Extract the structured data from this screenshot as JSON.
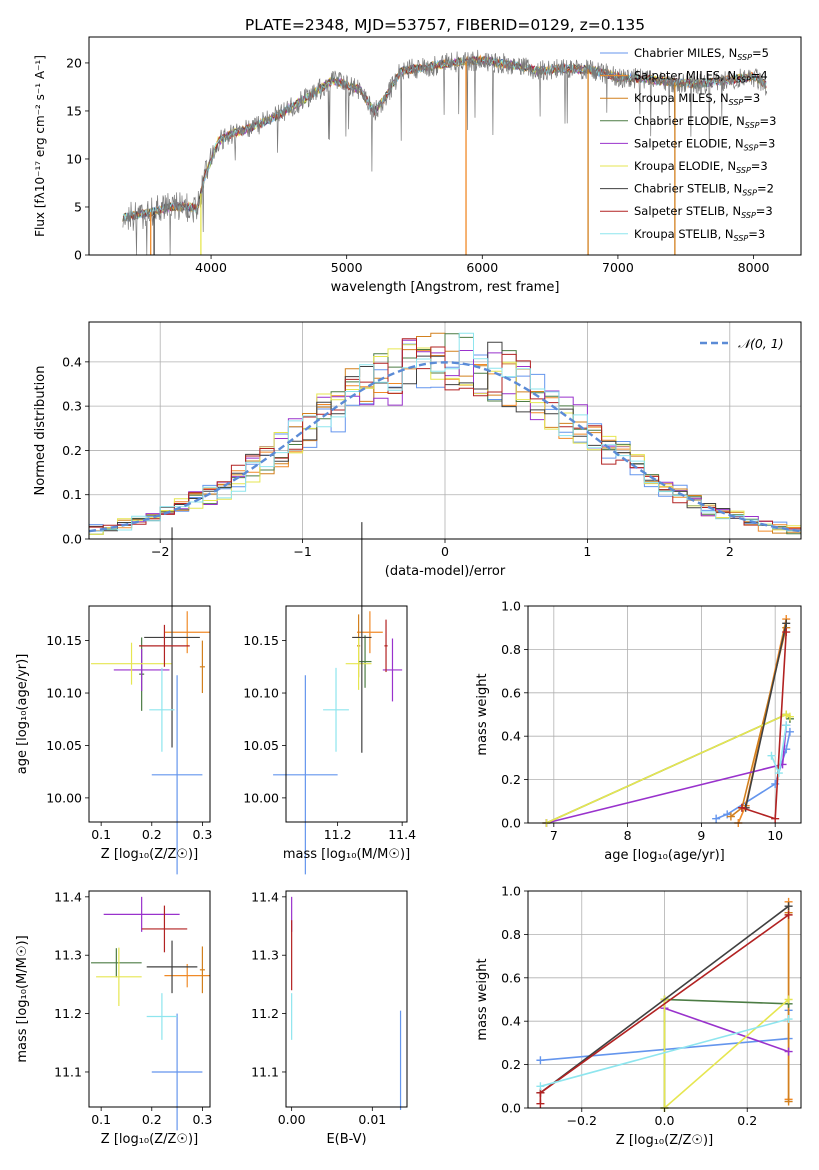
{
  "figure_title": "PLATE=2348, MJD=53757, FIBERID=0129, z=0.135",
  "chart_data": [
    {
      "type": "line",
      "id": "spectrum",
      "xlabel": "wavelength [Angstrom, rest frame]",
      "ylabel": "Flux [fλ10⁻¹⁷ erg cm⁻² s⁻¹ A⁻¹]",
      "xlim": [
        3100,
        8350
      ],
      "ylim": [
        0,
        22.7
      ],
      "xticks": [
        4000,
        5000,
        6000,
        7000,
        8000
      ],
      "yticks": [
        0,
        5,
        10,
        15,
        20
      ],
      "legend_position": "top-right",
      "series": [
        {
          "name": "Chabrier MILES, N_SSP=5",
          "color": "#6495ed"
        },
        {
          "name": "Salpeter MILES, N_SSP=4",
          "color": "#f08a28"
        },
        {
          "name": "Kroupa MILES, N_SSP=3",
          "color": "#d2801e"
        },
        {
          "name": "Chabrier ELODIE, N_SSP=3",
          "color": "#4c7c44"
        },
        {
          "name": "Salpeter ELODIE, N_SSP=3",
          "color": "#9932cc"
        },
        {
          "name": "Kroupa ELODIE, N_SSP=3",
          "color": "#e6e650"
        },
        {
          "name": "Chabrier STELIB, N_SSP=2",
          "color": "#404040"
        },
        {
          "name": "Salpeter STELIB, N_SSP=3",
          "color": "#b22222"
        },
        {
          "name": "Kroupa STELIB, N_SSP=3",
          "color": "#8ee5ee"
        }
      ],
      "approx_continuum": {
        "x": [
          3350,
          3500,
          3600,
          3700,
          3800,
          3900,
          3950,
          4050,
          4150,
          4300,
          4500,
          4700,
          4900,
          5100,
          5200,
          5300,
          5400,
          5600,
          5800,
          6000,
          6200,
          6400,
          6600,
          6800,
          7000,
          7200,
          7400,
          7600,
          7800,
          8000,
          8100
        ],
        "y": [
          3.9,
          4.3,
          4.6,
          5.0,
          5.1,
          4.8,
          8.0,
          11.8,
          12.6,
          13.3,
          14.6,
          16.3,
          18.2,
          17.2,
          14.9,
          16.7,
          19.2,
          19.6,
          20.1,
          20.3,
          19.8,
          19.2,
          19.4,
          19.3,
          18.5,
          18.3,
          18.0,
          17.8,
          18.2,
          18.6,
          17.6
        ]
      }
    },
    {
      "type": "histogram",
      "id": "residuals",
      "xlabel": "(data-model)/error",
      "ylabel": "Normed distribution",
      "xlim": [
        -2.5,
        2.5
      ],
      "ylim": [
        0,
        0.49
      ],
      "xticks": [
        -2,
        -1,
        0,
        1,
        2
      ],
      "yticks": [
        0.0,
        0.1,
        0.2,
        0.3,
        0.4
      ],
      "grid": true,
      "reference_curve": {
        "name": "𝒩(0, 1)",
        "color": "#5b8bd6"
      },
      "bin_width": 0.1,
      "approx_bin_centers_range": [
        -2.45,
        2.45
      ]
    },
    {
      "type": "scatter",
      "id": "age-vs-Z",
      "xlabel": "Z [log₁₀(Z/Z☉)]",
      "ylabel": "age  [log₁₀(age/yr)]",
      "xlim": [
        0.076,
        0.315
      ],
      "ylim": [
        9.977,
        10.183
      ],
      "xticks": [
        0.1,
        0.2,
        0.3
      ],
      "yticks": [
        10.0,
        10.05,
        10.1,
        10.15
      ],
      "points": [
        {
          "series": "Chabrier MILES",
          "x": 0.25,
          "y": 10.022,
          "xerr": 0.05,
          "yerr": 0.095
        },
        {
          "series": "Salpeter MILES",
          "x": 0.27,
          "y": 10.158,
          "xerr": 0.045,
          "yerr": 0.02
        },
        {
          "series": "Kroupa MILES",
          "x": 0.3,
          "y": 10.125,
          "xerr": 0.005,
          "yerr": 0.025
        },
        {
          "series": "Chabrier ELODIE",
          "x": 0.18,
          "y": 10.118,
          "xerr": 0.005,
          "yerr": 0.035
        },
        {
          "series": "Salpeter ELODIE",
          "x": 0.18,
          "y": 10.122,
          "xerr": 0.055,
          "yerr": 0.02
        },
        {
          "series": "Kroupa ELODIE",
          "x": 0.16,
          "y": 10.128,
          "xerr": 0.08,
          "yerr": 0.02
        },
        {
          "series": "Chabrier STELIB",
          "x": 0.24,
          "y": 10.153,
          "xerr": 0.055,
          "yerr": 0.105
        },
        {
          "series": "Salpeter STELIB",
          "x": 0.225,
          "y": 10.145,
          "xerr": 0.05,
          "yerr": 0.02
        },
        {
          "series": "Kroupa STELIB",
          "x": 0.22,
          "y": 10.084,
          "xerr": 0.025,
          "yerr": 0.04
        }
      ]
    },
    {
      "type": "scatter",
      "id": "age-vs-mass",
      "xlabel": "mass [log₁₀(M/M☉)]",
      "ylabel": "",
      "xlim": [
        11.04,
        11.415
      ],
      "ylim": [
        9.977,
        10.183
      ],
      "xticks": [
        11.2,
        11.4
      ],
      "yticks": [
        10.0,
        10.05,
        10.1,
        10.15
      ],
      "points": [
        {
          "series": "Chabrier MILES",
          "x": 11.1,
          "y": 10.022,
          "xerr": 0.1,
          "yerr": 0.095
        },
        {
          "series": "Salpeter MILES",
          "x": 11.3,
          "y": 10.158,
          "xerr": 0.04,
          "yerr": 0.02
        },
        {
          "series": "Kroupa MILES",
          "x": 11.265,
          "y": 10.145,
          "xerr": 0.005,
          "yerr": 0.03
        },
        {
          "series": "Chabrier ELODIE",
          "x": 11.285,
          "y": 10.13,
          "xerr": 0.02,
          "yerr": 0.025
        },
        {
          "series": "Salpeter ELODIE",
          "x": 11.37,
          "y": 10.122,
          "xerr": 0.03,
          "yerr": 0.03
        },
        {
          "series": "Kroupa ELODIE",
          "x": 11.265,
          "y": 10.128,
          "xerr": 0.04,
          "yerr": 0.025
        },
        {
          "series": "Chabrier STELIB",
          "x": 11.275,
          "y": 10.153,
          "xerr": 0.03,
          "yerr": 0.11
        },
        {
          "series": "Salpeter STELIB",
          "x": 11.35,
          "y": 10.145,
          "xerr": 0.005,
          "yerr": 0.025
        },
        {
          "series": "Kroupa STELIB",
          "x": 11.195,
          "y": 10.084,
          "xerr": 0.04,
          "yerr": 0.04
        }
      ]
    },
    {
      "type": "line",
      "id": "mass-weight-vs-age",
      "xlabel": "age  [log₁₀(age/yr)]",
      "ylabel": "mass weight",
      "xlim": [
        6.65,
        10.35
      ],
      "ylim": [
        0,
        1.0
      ],
      "xticks": [
        7,
        8,
        9,
        10
      ],
      "yticks": [
        0.0,
        0.2,
        0.4,
        0.6,
        0.8,
        1.0
      ],
      "grid": true,
      "series": [
        {
          "name": "Chabrier MILES",
          "x": [
            9.2,
            9.35,
            10.0,
            10.15,
            10.2
          ],
          "y": [
            0.02,
            0.04,
            0.18,
            0.34,
            0.42
          ]
        },
        {
          "name": "Salpeter MILES",
          "x": [
            9.5,
            9.6,
            10.15
          ],
          "y": [
            0.0,
            0.08,
            0.94
          ]
        },
        {
          "name": "Kroupa MILES",
          "x": [
            9.4,
            9.55,
            10.15
          ],
          "y": [
            0.03,
            0.07,
            0.9
          ]
        },
        {
          "name": "Chabrier ELODIE",
          "x": [
            6.9,
            10.15,
            10.2
          ],
          "y": [
            0.0,
            0.5,
            0.48
          ]
        },
        {
          "name": "Salpeter ELODIE",
          "x": [
            6.9,
            10.1,
            10.15
          ],
          "y": [
            0.0,
            0.27,
            0.45
          ]
        },
        {
          "name": "Kroupa ELODIE",
          "x": [
            6.9,
            10.15,
            10.2
          ],
          "y": [
            0.0,
            0.5,
            0.49
          ]
        },
        {
          "name": "Chabrier STELIB",
          "x": [
            9.6,
            10.15
          ],
          "y": [
            0.07,
            0.92
          ]
        },
        {
          "name": "Salpeter STELIB",
          "x": [
            9.55,
            10.0,
            10.15
          ],
          "y": [
            0.07,
            0.02,
            0.88
          ]
        },
        {
          "name": "Kroupa STELIB",
          "x": [
            9.95,
            10.05,
            10.15
          ],
          "y": [
            0.31,
            0.23,
            0.45
          ]
        }
      ]
    },
    {
      "type": "scatter",
      "id": "mass-vs-Z",
      "xlabel": "Z [log₁₀(Z/Z☉)]",
      "ylabel": "mass [log₁₀(M/M☉)]",
      "xlim": [
        0.076,
        0.315
      ],
      "ylim": [
        11.04,
        11.41
      ],
      "xticks": [
        0.1,
        0.2,
        0.3
      ],
      "yticks": [
        11.1,
        11.2,
        11.3,
        11.4
      ],
      "points": [
        {
          "series": "Chabrier MILES",
          "x": 0.25,
          "y": 11.1,
          "xerr": 0.05,
          "yerr": 0.1
        },
        {
          "series": "Salpeter MILES",
          "x": 0.27,
          "y": 11.265,
          "xerr": 0.045,
          "yerr": 0.02
        },
        {
          "series": "Kroupa MILES",
          "x": 0.3,
          "y": 11.275,
          "xerr": 0.005,
          "yerr": 0.04
        },
        {
          "series": "Chabrier ELODIE",
          "x": 0.13,
          "y": 11.287,
          "xerr": 0.05,
          "yerr": 0.025
        },
        {
          "series": "Salpeter ELODIE",
          "x": 0.18,
          "y": 11.37,
          "xerr": 0.075,
          "yerr": 0.03
        },
        {
          "series": "Kroupa ELODIE",
          "x": 0.135,
          "y": 11.263,
          "xerr": 0.045,
          "yerr": 0.05
        },
        {
          "series": "Chabrier STELIB",
          "x": 0.24,
          "y": 11.28,
          "xerr": 0.05,
          "yerr": 0.045
        },
        {
          "series": "Salpeter STELIB",
          "x": 0.225,
          "y": 11.345,
          "xerr": 0.045,
          "yerr": 0.04
        },
        {
          "series": "Kroupa STELIB",
          "x": 0.22,
          "y": 11.195,
          "xerr": 0.03,
          "yerr": 0.04
        }
      ]
    },
    {
      "type": "scatter",
      "id": "mass-vs-EBV",
      "xlabel": "E(B-V)",
      "ylabel": "",
      "xlim": [
        -0.0007,
        0.0143
      ],
      "ylim": [
        11.04,
        11.41
      ],
      "xticks": [
        0.0,
        0.01
      ],
      "yticks": [
        11.1,
        11.2,
        11.3,
        11.4
      ],
      "points": [
        {
          "series": "Chabrier MILES",
          "x": 0.0135,
          "y": 11.12,
          "xerr": 0,
          "yerr": 0.085
        },
        {
          "series": "Salpeter ELODIE",
          "x": 0.0,
          "y": 11.37,
          "xerr": 0,
          "yerr": 0.03
        },
        {
          "series": "Salpeter STELIB",
          "x": 0.0,
          "y": 11.3,
          "xerr": 0,
          "yerr": 0.06
        },
        {
          "series": "Kroupa STELIB",
          "x": 0.0,
          "y": 11.195,
          "xerr": 0,
          "yerr": 0.04
        }
      ]
    },
    {
      "type": "line",
      "id": "mass-weight-vs-Z",
      "xlabel": "Z [log₁₀(Z/Z☉)]",
      "ylabel": "mass weight",
      "xlim": [
        -0.33,
        0.33
      ],
      "ylim": [
        0,
        1.0
      ],
      "xticks": [
        -0.2,
        0.0,
        0.2
      ],
      "yticks": [
        0.0,
        0.2,
        0.4,
        0.6,
        0.8,
        1.0
      ],
      "grid": true,
      "series": [
        {
          "name": "Chabrier MILES",
          "x": [
            -0.3,
            0.3,
            0.3
          ],
          "y": [
            0.22,
            0.32,
            0.45
          ]
        },
        {
          "name": "Salpeter MILES",
          "x": [
            0.3,
            0.3
          ],
          "y": [
            0.04,
            0.95
          ]
        },
        {
          "name": "Kroupa MILES",
          "x": [
            0.3,
            0.3
          ],
          "y": [
            0.03,
            0.9
          ]
        },
        {
          "name": "Chabrier ELODIE",
          "x": [
            0.0,
            0.0,
            0.3
          ],
          "y": [
            0.0,
            0.5,
            0.48
          ]
        },
        {
          "name": "Salpeter ELODIE",
          "x": [
            0.0,
            0.3
          ],
          "y": [
            0.46,
            0.26
          ]
        },
        {
          "name": "Kroupa ELODIE",
          "x": [
            0.0,
            0.0,
            0.3
          ],
          "y": [
            0.5,
            0.0,
            0.5
          ]
        },
        {
          "name": "Chabrier STELIB",
          "x": [
            -0.3,
            0.3
          ],
          "y": [
            0.07,
            0.93
          ]
        },
        {
          "name": "Salpeter STELIB",
          "x": [
            -0.3,
            -0.3,
            0.3
          ],
          "y": [
            0.02,
            0.07,
            0.89
          ]
        },
        {
          "name": "Kroupa STELIB",
          "x": [
            -0.3,
            0.3
          ],
          "y": [
            0.1,
            0.41
          ]
        }
      ]
    }
  ]
}
